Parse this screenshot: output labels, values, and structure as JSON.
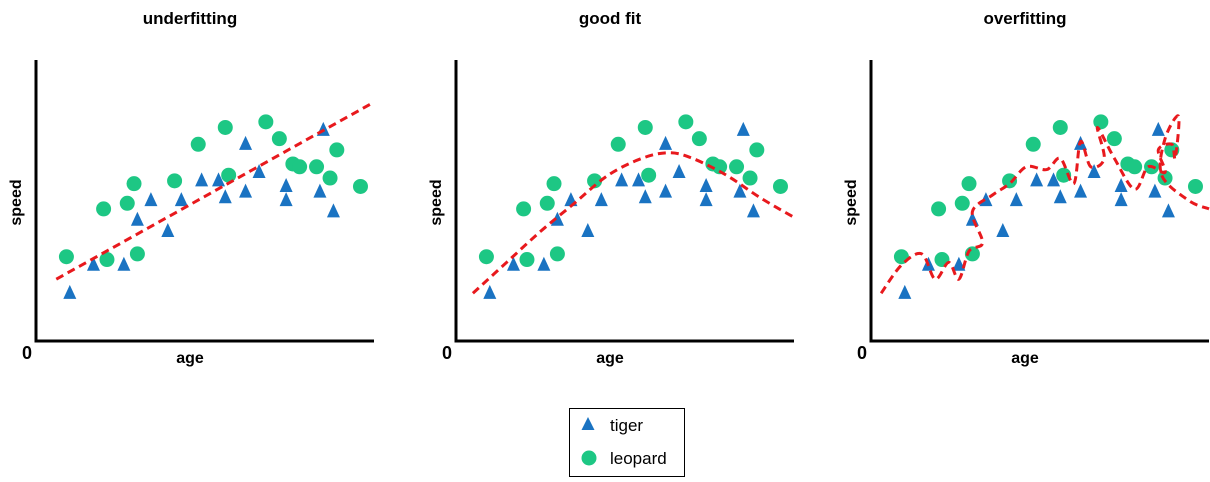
{
  "colors": {
    "tiger": "#1a73c2",
    "leopard": "#1dc784",
    "fit_curve": "#e8191d",
    "axis": "#000000"
  },
  "legend": {
    "items": [
      {
        "key": "tiger",
        "label": "tiger",
        "marker": "triangle"
      },
      {
        "key": "leopard",
        "label": "leopard",
        "marker": "circle"
      }
    ]
  },
  "chart_data": [
    {
      "type": "scatter",
      "title": "underfitting",
      "xlabel": "age",
      "ylabel": "speed",
      "origin_label": "0",
      "xlim": [
        0,
        10
      ],
      "ylim": [
        0,
        10
      ],
      "series": [
        {
          "name": "tiger",
          "marker": "triangle",
          "points": [
            [
              1.0,
              1.7
            ],
            [
              1.7,
              2.7
            ],
            [
              2.6,
              2.7
            ],
            [
              3.0,
              4.3
            ],
            [
              3.4,
              5.0
            ],
            [
              3.9,
              3.9
            ],
            [
              4.3,
              5.0
            ],
            [
              4.9,
              5.7
            ],
            [
              5.4,
              5.7
            ],
            [
              5.6,
              5.1
            ],
            [
              6.2,
              7.0
            ],
            [
              6.2,
              5.3
            ],
            [
              6.6,
              6.0
            ],
            [
              7.4,
              5.5
            ],
            [
              7.4,
              5.0
            ],
            [
              8.4,
              5.3
            ],
            [
              8.5,
              7.5
            ],
            [
              8.8,
              4.6
            ]
          ]
        },
        {
          "name": "leopard",
          "marker": "circle",
          "points": [
            [
              0.9,
              3.0
            ],
            [
              2.0,
              4.7
            ],
            [
              2.1,
              2.9
            ],
            [
              2.7,
              4.9
            ],
            [
              2.9,
              5.6
            ],
            [
              3.0,
              3.1
            ],
            [
              4.1,
              5.7
            ],
            [
              4.8,
              7.0
            ],
            [
              5.6,
              7.6
            ],
            [
              5.7,
              5.9
            ],
            [
              6.8,
              7.8
            ],
            [
              7.2,
              7.2
            ],
            [
              7.6,
              6.3
            ],
            [
              7.8,
              6.2
            ],
            [
              8.3,
              6.2
            ],
            [
              8.7,
              5.8
            ],
            [
              8.9,
              6.8
            ],
            [
              9.6,
              5.5
            ]
          ]
        },
        {
          "name": "fit",
          "style": "dashed",
          "points": [
            [
              0.6,
              2.2
            ],
            [
              10.0,
              8.5
            ]
          ]
        }
      ]
    },
    {
      "type": "scatter",
      "title": "good fit",
      "xlabel": "age",
      "ylabel": "speed",
      "origin_label": "0",
      "xlim": [
        0,
        10
      ],
      "ylim": [
        0,
        10
      ],
      "series": [
        {
          "name": "tiger",
          "marker": "triangle",
          "points": [
            [
              1.0,
              1.7
            ],
            [
              1.7,
              2.7
            ],
            [
              2.6,
              2.7
            ],
            [
              3.0,
              4.3
            ],
            [
              3.4,
              5.0
            ],
            [
              3.9,
              3.9
            ],
            [
              4.3,
              5.0
            ],
            [
              4.9,
              5.7
            ],
            [
              5.4,
              5.7
            ],
            [
              5.6,
              5.1
            ],
            [
              6.2,
              7.0
            ],
            [
              6.2,
              5.3
            ],
            [
              6.6,
              6.0
            ],
            [
              7.4,
              5.5
            ],
            [
              7.4,
              5.0
            ],
            [
              8.4,
              5.3
            ],
            [
              8.5,
              7.5
            ],
            [
              8.8,
              4.6
            ]
          ]
        },
        {
          "name": "leopard",
          "marker": "circle",
          "points": [
            [
              0.9,
              3.0
            ],
            [
              2.0,
              4.7
            ],
            [
              2.1,
              2.9
            ],
            [
              2.7,
              4.9
            ],
            [
              2.9,
              5.6
            ],
            [
              3.0,
              3.1
            ],
            [
              4.1,
              5.7
            ],
            [
              4.8,
              7.0
            ],
            [
              5.6,
              7.6
            ],
            [
              5.7,
              5.9
            ],
            [
              6.8,
              7.8
            ],
            [
              7.2,
              7.2
            ],
            [
              7.6,
              6.3
            ],
            [
              7.8,
              6.2
            ],
            [
              8.3,
              6.2
            ],
            [
              8.7,
              5.8
            ],
            [
              8.9,
              6.8
            ],
            [
              9.6,
              5.5
            ]
          ]
        },
        {
          "name": "fit",
          "style": "dashed",
          "points": [
            [
              0.5,
              1.7
            ],
            [
              1.5,
              2.8
            ],
            [
              2.5,
              3.9
            ],
            [
              3.5,
              4.9
            ],
            [
              4.5,
              5.9
            ],
            [
              5.5,
              6.5
            ],
            [
              6.3,
              6.7
            ],
            [
              7.0,
              6.5
            ],
            [
              8.0,
              5.9
            ],
            [
              9.0,
              5.1
            ],
            [
              10.0,
              4.4
            ]
          ]
        }
      ]
    },
    {
      "type": "scatter",
      "title": "overfitting",
      "xlabel": "age",
      "ylabel": "speed",
      "origin_label": "0",
      "xlim": [
        0,
        10
      ],
      "ylim": [
        0,
        10
      ],
      "series": [
        {
          "name": "tiger",
          "marker": "triangle",
          "points": [
            [
              1.0,
              1.7
            ],
            [
              1.7,
              2.7
            ],
            [
              2.6,
              2.7
            ],
            [
              3.0,
              4.3
            ],
            [
              3.4,
              5.0
            ],
            [
              3.9,
              3.9
            ],
            [
              4.3,
              5.0
            ],
            [
              4.9,
              5.7
            ],
            [
              5.4,
              5.7
            ],
            [
              5.6,
              5.1
            ],
            [
              6.2,
              7.0
            ],
            [
              6.2,
              5.3
            ],
            [
              6.6,
              6.0
            ],
            [
              7.4,
              5.5
            ],
            [
              7.4,
              5.0
            ],
            [
              8.4,
              5.3
            ],
            [
              8.5,
              7.5
            ],
            [
              8.8,
              4.6
            ]
          ]
        },
        {
          "name": "leopard",
          "marker": "circle",
          "points": [
            [
              0.9,
              3.0
            ],
            [
              2.0,
              4.7
            ],
            [
              2.1,
              2.9
            ],
            [
              2.7,
              4.9
            ],
            [
              2.9,
              5.6
            ],
            [
              3.0,
              3.1
            ],
            [
              4.1,
              5.7
            ],
            [
              4.8,
              7.0
            ],
            [
              5.6,
              7.6
            ],
            [
              5.7,
              5.9
            ],
            [
              6.8,
              7.8
            ],
            [
              7.2,
              7.2
            ],
            [
              7.6,
              6.3
            ],
            [
              7.8,
              6.2
            ],
            [
              8.3,
              6.2
            ],
            [
              8.7,
              5.8
            ],
            [
              8.9,
              6.8
            ],
            [
              9.6,
              5.5
            ]
          ]
        },
        {
          "name": "fit",
          "style": "dashed",
          "points": [
            [
              0.3,
              1.7
            ],
            [
              0.9,
              2.7
            ],
            [
              1.5,
              3.1
            ],
            [
              1.9,
              2.2
            ],
            [
              2.3,
              2.8
            ],
            [
              2.6,
              2.2
            ],
            [
              2.9,
              3.2
            ],
            [
              3.3,
              3.5
            ],
            [
              3.0,
              4.6
            ],
            [
              3.6,
              5.2
            ],
            [
              4.1,
              5.6
            ],
            [
              4.6,
              6.2
            ],
            [
              5.2,
              6.1
            ],
            [
              5.6,
              6.5
            ],
            [
              6.0,
              5.6
            ],
            [
              6.2,
              7.1
            ],
            [
              6.5,
              6.2
            ],
            [
              6.9,
              6.5
            ],
            [
              6.7,
              7.6
            ],
            [
              7.2,
              6.5
            ],
            [
              7.8,
              5.4
            ],
            [
              8.2,
              6.2
            ],
            [
              8.7,
              6.0
            ],
            [
              8.5,
              6.8
            ],
            [
              8.9,
              7.0
            ],
            [
              9.0,
              6.5
            ],
            [
              9.1,
              8.0
            ],
            [
              8.7,
              7.2
            ],
            [
              8.6,
              5.9
            ],
            [
              9.4,
              5.0
            ],
            [
              10.0,
              4.7
            ]
          ]
        }
      ]
    }
  ]
}
